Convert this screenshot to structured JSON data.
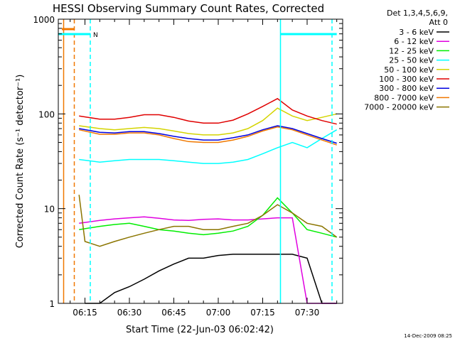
{
  "chart_data": {
    "type": "line",
    "title": "HESSI Observing Summary Count Rates, Corrected",
    "xlabel": "Start Time (22-Jun-03 06:02:42)",
    "ylabel": "Corrected Count Rate (s⁻¹ detector⁻¹)",
    "yscale": "log",
    "ylim": [
      1,
      1000
    ],
    "xlim_minutes": [
      6.0,
      102.0
    ],
    "x_ticks": [
      {
        "label": "06:15",
        "value": 15
      },
      {
        "label": "06:30",
        "value": 30
      },
      {
        "label": "06:45",
        "value": 45
      },
      {
        "label": "07:00",
        "value": 60
      },
      {
        "label": "07:15",
        "value": 75
      },
      {
        "label": "07:30",
        "value": 90
      }
    ],
    "y_ticks": [
      {
        "label": "1",
        "value": 1
      },
      {
        "label": "10",
        "value": 10
      },
      {
        "label": "100",
        "value": 100
      },
      {
        "label": "1000",
        "value": 1000
      }
    ],
    "legend_header": [
      "Det 1,3,4,5,6,9,",
      "Att 0"
    ],
    "legend_placement": "right",
    "series": [
      {
        "name": "3 - 6 keV",
        "color": "#000000",
        "x": [
          15,
          20,
          25,
          30,
          35,
          40,
          45,
          50,
          55,
          60,
          65,
          70,
          75,
          80,
          85,
          90,
          95,
          100
        ],
        "values": [
          1,
          1,
          1.3,
          1.5,
          1.8,
          2.2,
          2.6,
          3,
          3,
          3.2,
          3.3,
          3.3,
          3.3,
          3.3,
          3.3,
          3,
          1,
          1
        ]
      },
      {
        "name": "6 - 12 keV",
        "color": "#e000e0",
        "x": [
          13,
          20,
          25,
          30,
          35,
          40,
          45,
          50,
          55,
          60,
          65,
          70,
          75,
          80,
          85,
          90,
          95,
          100
        ],
        "values": [
          7,
          7.5,
          7.8,
          8,
          8.2,
          7.9,
          7.6,
          7.5,
          7.7,
          7.8,
          7.6,
          7.6,
          7.8,
          8,
          8,
          1,
          1,
          1
        ]
      },
      {
        "name": "12 - 25 keV",
        "color": "#00ee00",
        "x": [
          13,
          20,
          25,
          30,
          35,
          40,
          45,
          50,
          55,
          60,
          65,
          70,
          75,
          80,
          85,
          90,
          95,
          100
        ],
        "values": [
          6,
          6.5,
          6.8,
          7,
          6.5,
          6,
          5.8,
          5.5,
          5.3,
          5.5,
          5.8,
          6.5,
          8.5,
          13,
          9,
          6,
          5.5,
          5
        ]
      },
      {
        "name": "25 - 50 keV",
        "color": "#00ffff",
        "x": [
          13,
          20,
          25,
          30,
          35,
          40,
          45,
          50,
          55,
          60,
          65,
          70,
          75,
          80,
          85,
          90,
          95,
          100
        ],
        "values": [
          33,
          31,
          32,
          33,
          33,
          33,
          32,
          31,
          30,
          30,
          31,
          33,
          38,
          44,
          50,
          44,
          55,
          68
        ]
      },
      {
        "name": "50 - 100 keV",
        "color": "#d4d400",
        "x": [
          13,
          20,
          25,
          30,
          35,
          40,
          45,
          50,
          55,
          60,
          65,
          70,
          75,
          80,
          85,
          90,
          95,
          100
        ],
        "values": [
          75,
          70,
          68,
          70,
          72,
          70,
          66,
          62,
          60,
          60,
          63,
          70,
          85,
          115,
          95,
          85,
          92,
          100
        ]
      },
      {
        "name": "100 - 300 keV",
        "color": "#e00000",
        "x": [
          13,
          20,
          25,
          30,
          35,
          40,
          45,
          50,
          55,
          60,
          65,
          70,
          75,
          80,
          85,
          90,
          95,
          100
        ],
        "values": [
          95,
          88,
          88,
          92,
          98,
          98,
          92,
          84,
          80,
          80,
          86,
          100,
          120,
          145,
          110,
          95,
          85,
          78
        ]
      },
      {
        "name": "300 - 800 keV",
        "color": "#0000e0",
        "x": [
          13,
          20,
          25,
          30,
          35,
          40,
          45,
          50,
          55,
          60,
          65,
          70,
          75,
          80,
          85,
          90,
          95,
          100
        ],
        "values": [
          70,
          64,
          63,
          65,
          65,
          62,
          58,
          55,
          53,
          53,
          56,
          60,
          68,
          75,
          70,
          62,
          55,
          49
        ]
      },
      {
        "name": "800 - 7000 keV",
        "color": "#f07800",
        "x": [
          13,
          20,
          25,
          30,
          35,
          40,
          45,
          50,
          55,
          60,
          65,
          70,
          75,
          80,
          85,
          90,
          95,
          100
        ],
        "values": [
          68,
          61,
          61,
          63,
          63,
          60,
          55,
          51,
          50,
          50,
          53,
          58,
          66,
          73,
          68,
          60,
          53,
          47
        ]
      },
      {
        "name": "7000 - 20000 keV",
        "color": "#8b7500",
        "x": [
          13,
          15,
          20,
          25,
          30,
          35,
          40,
          45,
          50,
          55,
          60,
          65,
          70,
          75,
          80,
          85,
          90,
          95,
          100
        ],
        "values": [
          14,
          4.5,
          4,
          4.5,
          5,
          5.5,
          6,
          6.5,
          6.5,
          6,
          6,
          6.5,
          7,
          8.5,
          11,
          9,
          7,
          6.5,
          5
        ]
      }
    ],
    "markers": [
      {
        "type": "vline",
        "x": 7.8,
        "color": "#f07800",
        "style": "solid"
      },
      {
        "type": "vline",
        "x": 11.4,
        "color": "#f07800",
        "style": "dashed"
      },
      {
        "type": "vline",
        "x": 16.8,
        "color": "#00ffff",
        "style": "dashed"
      },
      {
        "type": "vline",
        "x": 81.0,
        "color": "#00ffff",
        "style": "solid"
      },
      {
        "type": "vline",
        "x": 98.4,
        "color": "#00ffff",
        "style": "dashed"
      }
    ],
    "flags": [
      {
        "label": "",
        "color": "#f07800",
        "x_start": 7.2,
        "x_end": 11.4
      },
      {
        "label": "N",
        "color": "#00ffff",
        "x_start": 6.0,
        "x_end": 16.8
      },
      {
        "label": "",
        "color": "#00ffff",
        "x_start": 81.0,
        "x_end": 100.0
      }
    ]
  },
  "footer_date": "14-Dec-2009 08:25",
  "grid": false
}
